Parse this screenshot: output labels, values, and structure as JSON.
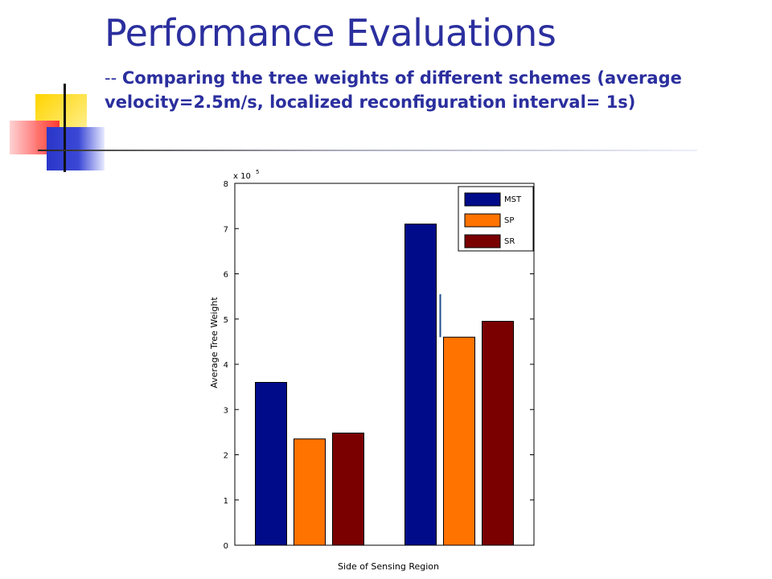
{
  "slide": {
    "title": "Performance Evaluations",
    "subtitle_dash": "-- ",
    "subtitle": "Comparing the tree weights of different schemes (average velocity=2.5m/s, localized reconfiguration interval= 1s)"
  },
  "chart_data": {
    "type": "bar",
    "title": "",
    "xlabel": "Side of Sensing Region",
    "ylabel": "Average Tree Weight",
    "y_multiplier": "x 10",
    "y_multiplier_exp": "5",
    "ylim": [
      0,
      8
    ],
    "yticks": [
      "0",
      "1",
      "2",
      "3",
      "4",
      "5",
      "6",
      "7",
      "8"
    ],
    "categories": [
      "",
      ""
    ],
    "legend_position": "top-right",
    "series": [
      {
        "name": "MST",
        "color": "#000b8a",
        "values": [
          3.6,
          7.1
        ]
      },
      {
        "name": "SP",
        "color": "#ff7300",
        "values": [
          2.35,
          4.6
        ]
      },
      {
        "name": "SR",
        "color": "#7a0000",
        "values": [
          2.48,
          4.95
        ]
      }
    ],
    "annotation": {
      "type": "vertical-line",
      "x_between": "MST-SP group 2",
      "y_range": [
        4.6,
        5.55
      ],
      "color": "#1f4e8c"
    }
  }
}
